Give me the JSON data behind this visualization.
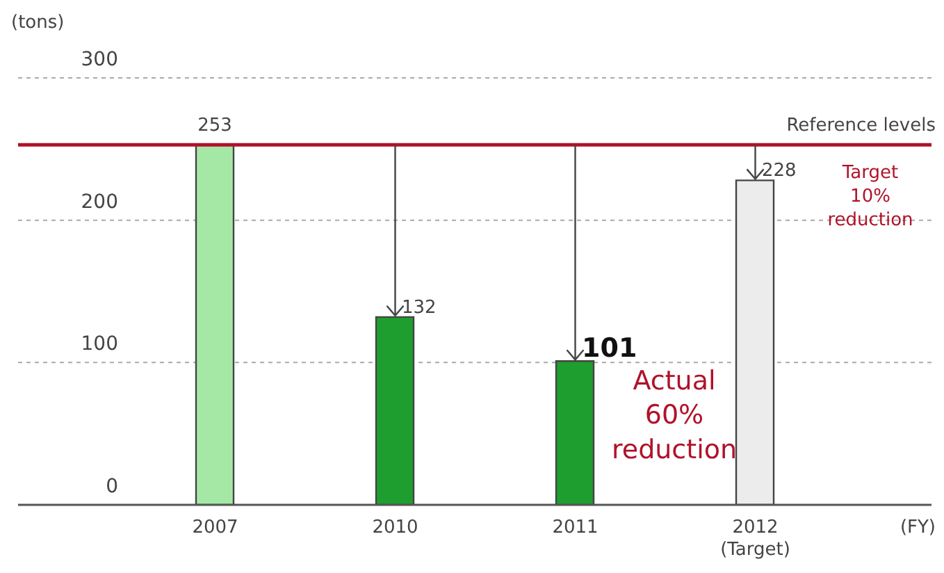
{
  "chart_data": {
    "type": "bar",
    "ylabel": "(tons)",
    "xlabel": "(FY)",
    "categories": [
      "2007",
      "2010",
      "2011",
      "2012\n(Target)"
    ],
    "values": [
      253,
      132,
      101,
      228
    ],
    "colors": [
      "#a5e8a5",
      "#1e9e2e",
      "#1e9e2e",
      "#ececec"
    ],
    "ylim": [
      0,
      300
    ],
    "yticks": [
      0,
      100,
      200,
      300
    ],
    "grid": "y",
    "data_labels": true,
    "ref_lines": [
      {
        "axis": "y",
        "value": 253,
        "label": "Reference levels",
        "color": "#b0122a"
      }
    ],
    "annotations": [
      "Actual 60% reduction",
      "Target 10% reduction"
    ]
  }
}
